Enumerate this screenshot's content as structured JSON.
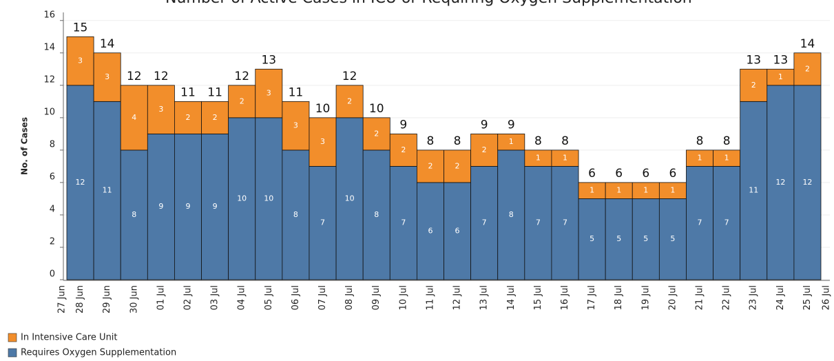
{
  "chart_data": {
    "type": "stacked-bar",
    "title": "Number of Active Cases in ICU or Requiring Oxygen Supplementation",
    "y_label": "No. of Cases",
    "categories": [
      "27 Jun",
      "28 Jun",
      "29 Jun",
      "30 Jun",
      "01 Jul",
      "02 Jul",
      "03 Jul",
      "04 Jul",
      "05 Jul",
      "06 Jul",
      "07 Jul",
      "08 Jul",
      "09 Jul",
      "10 Jul",
      "11 Jul",
      "12 Jul",
      "13 Jul",
      "14 Jul",
      "15 Jul",
      "16 Jul",
      "17 Jul",
      "18 Jul",
      "19 Jul",
      "20 Jul",
      "21 Jul",
      "22 Jul",
      "23 Jul",
      "24 Jul",
      "25 Jul",
      "26 Jul"
    ],
    "series": [
      {
        "name": "Requires Oxygen Supplementation",
        "color": "#4e79a7",
        "values": [
          null,
          12,
          11,
          8,
          9,
          9,
          9,
          10,
          10,
          8,
          7,
          10,
          8,
          7,
          6,
          6,
          7,
          8,
          7,
          7,
          5,
          5,
          5,
          5,
          7,
          7,
          11,
          12,
          12,
          null
        ]
      },
      {
        "name": "In Intensive Care Unit",
        "color": "#f28e2b",
        "values": [
          null,
          3,
          3,
          4,
          3,
          2,
          2,
          2,
          3,
          3,
          3,
          2,
          2,
          2,
          2,
          2,
          2,
          1,
          1,
          1,
          1,
          1,
          1,
          1,
          1,
          1,
          2,
          1,
          2,
          null
        ]
      }
    ],
    "totals": [
      null,
      15,
      14,
      12,
      12,
      11,
      11,
      12,
      13,
      11,
      10,
      12,
      10,
      9,
      8,
      8,
      9,
      9,
      8,
      8,
      6,
      6,
      6,
      6,
      8,
      8,
      13,
      13,
      14,
      null
    ],
    "legend_order": [
      1,
      0
    ],
    "ylim": [
      0,
      16.5
    ],
    "yticks": [
      0,
      2,
      4,
      6,
      8,
      10,
      12,
      14,
      16
    ],
    "grid": true
  }
}
